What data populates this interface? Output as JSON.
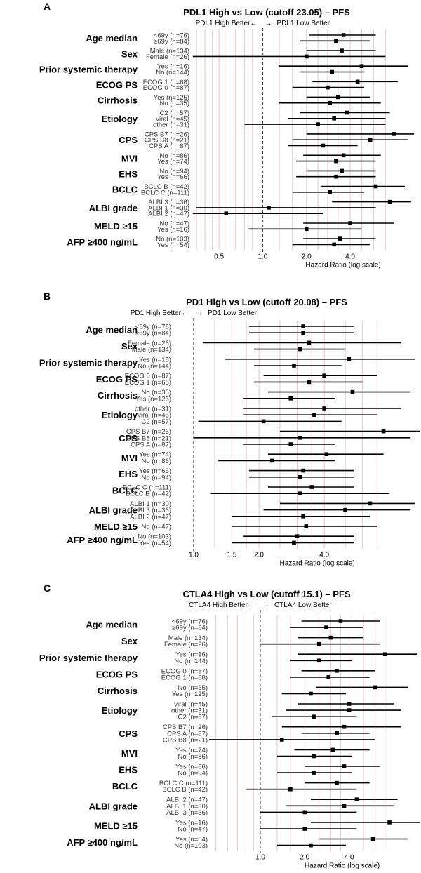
{
  "colors": {
    "grid": "#e4c9c9",
    "ref": "#444444",
    "marks": "#000000"
  },
  "chart_data": [
    {
      "type": "forest",
      "panel": "A",
      "title": "PDL1 High vs Low (cutoff 23.05) – PFS",
      "left_direction": "PDL1 High Better←",
      "arrow": "→",
      "right_direction": "PDL1 Low Better",
      "xlabel": "Hazard Ratio (log scale)",
      "x_scale": "log",
      "xlim": [
        0.32,
        11
      ],
      "ticks": [
        0.5,
        1.0,
        2.0,
        4.0
      ],
      "tick_labels": [
        "0.5",
        "1.0",
        "2.0",
        "4.0"
      ],
      "gridlines": [
        0.35,
        0.4,
        0.45,
        0.55,
        0.65,
        0.75,
        0.85,
        1.3,
        1.6,
        2.4,
        2.8,
        3.3,
        4.8,
        5.8,
        7.0
      ],
      "reference": 1.0,
      "groups": [
        {
          "variable": "Age median",
          "rows": [
            {
              "label": "<69y (n=76)",
              "hr": 3.6,
              "lo": 2.1,
              "hi": 6.0
            },
            {
              "label": "≥69y (n=84)",
              "hr": 3.2,
              "lo": 1.8,
              "hi": 5.5
            }
          ]
        },
        {
          "variable": "Sex",
          "rows": [
            {
              "label": "Male (n=134)",
              "hr": 3.5,
              "lo": 2.0,
              "hi": 6.0
            },
            {
              "label": "Female (n=26)",
              "hr": 2.0,
              "lo": 0.33,
              "hi": 7.0
            }
          ]
        },
        {
          "variable": "Prior systemic therapy",
          "rows": [
            {
              "label": "Yes (n=16)",
              "hr": 4.8,
              "lo": 1.3,
              "hi": 10.0
            },
            {
              "label": "No (n=144)",
              "hr": 3.0,
              "lo": 1.8,
              "hi": 5.0
            }
          ]
        },
        {
          "variable": "ECOG PS",
          "rows": [
            {
              "label": "ECOG 1 (n=68)",
              "hr": 4.5,
              "lo": 2.2,
              "hi": 8.5
            },
            {
              "label": "ECOG 0 (n=87)",
              "hr": 2.8,
              "lo": 1.6,
              "hi": 5.0
            }
          ]
        },
        {
          "variable": "Cirrhosis",
          "rows": [
            {
              "label": "Yes (n=125)",
              "hr": 3.3,
              "lo": 2.0,
              "hi": 5.5
            },
            {
              "label": "No (n=35)",
              "hr": 2.9,
              "lo": 1.3,
              "hi": 6.5
            }
          ]
        },
        {
          "variable": "Etiology",
          "rows": [
            {
              "label": "C2 (n=57)",
              "hr": 3.8,
              "lo": 1.8,
              "hi": 7.5
            },
            {
              "label": "viral (n=45)",
              "hr": 3.1,
              "lo": 1.5,
              "hi": 7.0
            },
            {
              "label": "other (n=31)",
              "hr": 2.4,
              "lo": 0.75,
              "hi": 7.0
            }
          ]
        },
        {
          "variable": "CPS",
          "rows": [
            {
              "label": "CPS B7 (n=26)",
              "hr": 8.0,
              "lo": 2.0,
              "hi": 11.0
            },
            {
              "label": "CPS B8 (n=21)",
              "hr": 5.5,
              "lo": 1.6,
              "hi": 10.0
            },
            {
              "label": "CPS A (n=87)",
              "hr": 2.6,
              "lo": 1.5,
              "hi": 4.5
            }
          ]
        },
        {
          "variable": "MVI",
          "rows": [
            {
              "label": "No (n=86)",
              "hr": 3.6,
              "lo": 1.9,
              "hi": 6.5
            },
            {
              "label": "Yes (n=74)",
              "hr": 3.2,
              "lo": 1.7,
              "hi": 6.0
            }
          ]
        },
        {
          "variable": "EHS",
          "rows": [
            {
              "label": "No (n=94)",
              "hr": 3.5,
              "lo": 2.0,
              "hi": 6.0
            },
            {
              "label": "Yes (n=66)",
              "hr": 3.2,
              "lo": 1.7,
              "hi": 6.0
            }
          ]
        },
        {
          "variable": "BCLC",
          "rows": [
            {
              "label": "BCLC B (n=42)",
              "hr": 6.0,
              "lo": 2.5,
              "hi": 9.5
            },
            {
              "label": "BCLC C (n=111)",
              "hr": 2.9,
              "lo": 1.6,
              "hi": 5.0
            }
          ]
        },
        {
          "variable": "ALBI grade",
          "rows": [
            {
              "label": "ALBI 3 (n=36)",
              "hr": 7.5,
              "lo": 3.0,
              "hi": 10.5
            },
            {
              "label": "ALBI 1 (n=30)",
              "hr": 1.1,
              "lo": 0.35,
              "hi": 6.0
            },
            {
              "label": "ALBI 2 (n=47)",
              "hr": 0.56,
              "lo": 0.33,
              "hi": 2.6
            }
          ]
        },
        {
          "variable": "MELD ≥15",
          "rows": [
            {
              "label": "No (n=47)",
              "hr": 4.0,
              "lo": 1.9,
              "hi": 8.0
            },
            {
              "label": "Yes (n=16)",
              "hr": 2.0,
              "lo": 0.8,
              "hi": 4.8
            }
          ]
        },
        {
          "variable": "AFP ≥400 ng/mL",
          "rows": [
            {
              "label": "No (n=103)",
              "hr": 3.4,
              "lo": 1.9,
              "hi": 6.0
            },
            {
              "label": "Yes (n=54)",
              "hr": 3.1,
              "lo": 1.6,
              "hi": 5.5
            }
          ]
        }
      ]
    },
    {
      "type": "forest",
      "panel": "B",
      "title": "PD1 High vs Low (cutoff 20.08) – PFS",
      "left_direction": "PD1 High Better←",
      "arrow": "→",
      "right_direction": "PD1 Low Better",
      "xlabel": "Hazard Ratio (log scale)",
      "x_scale": "log",
      "xlim": [
        0.8,
        11
      ],
      "ticks": [
        1.0,
        1.5,
        2.0,
        4.0
      ],
      "tick_labels": [
        "1.0",
        "1.5",
        "2.0",
        "4.0"
      ],
      "gridlines": [
        1.25,
        1.75,
        2.5,
        3.0,
        3.5,
        5.0,
        6.0,
        7.0
      ],
      "reference": 1.0,
      "groups": [
        {
          "variable": "Age median",
          "rows": [
            {
              "label": "<69y (n=76)",
              "hr": 3.2,
              "lo": 1.8,
              "hi": 5.5
            },
            {
              "label": "≥69y (n=84)",
              "hr": 3.2,
              "lo": 1.8,
              "hi": 5.5
            }
          ]
        },
        {
          "variable": "Sex",
          "rows": [
            {
              "label": "Female (n=26)",
              "hr": 3.4,
              "lo": 1.1,
              "hi": 9.0
            },
            {
              "label": "Male (n=134)",
              "hr": 3.1,
              "lo": 1.9,
              "hi": 5.0
            }
          ]
        },
        {
          "variable": "Prior systemic therapy",
          "rows": [
            {
              "label": "Yes (n=16)",
              "hr": 5.2,
              "lo": 1.4,
              "hi": 10.5
            },
            {
              "label": "No (n=144)",
              "hr": 2.9,
              "lo": 1.9,
              "hi": 4.8
            }
          ]
        },
        {
          "variable": "ECOG PS",
          "rows": [
            {
              "label": "ECOG 0 (n=87)",
              "hr": 4.0,
              "lo": 2.1,
              "hi": 7.0
            },
            {
              "label": "ECOG 1 (n=68)",
              "hr": 3.4,
              "lo": 1.9,
              "hi": 6.0
            }
          ]
        },
        {
          "variable": "Cirrhosis",
          "rows": [
            {
              "label": "No (n=35)",
              "hr": 5.4,
              "lo": 2.2,
              "hi": 10.0
            },
            {
              "label": "Yes (n=125)",
              "hr": 2.8,
              "lo": 1.7,
              "hi": 4.5
            }
          ]
        },
        {
          "variable": "Etiology",
          "rows": [
            {
              "label": "other (n=31)",
              "hr": 4.0,
              "lo": 1.7,
              "hi": 9.0
            },
            {
              "label": "viral (n=45)",
              "hr": 3.6,
              "lo": 1.7,
              "hi": 7.0
            },
            {
              "label": "C2 (n=57)",
              "hr": 2.1,
              "lo": 1.05,
              "hi": 4.8
            }
          ]
        },
        {
          "variable": "CPS",
          "rows": [
            {
              "label": "CPS B7 (n=26)",
              "hr": 7.5,
              "lo": 2.5,
              "hi": 11.0
            },
            {
              "label": "CPS B8 (n=21)",
              "hr": 3.1,
              "lo": 1.0,
              "hi": 10.0
            },
            {
              "label": "CPS A (n=87)",
              "hr": 2.8,
              "lo": 1.7,
              "hi": 4.5
            }
          ]
        },
        {
          "variable": "MVI",
          "rows": [
            {
              "label": "Yes (n=74)",
              "hr": 4.1,
              "lo": 2.2,
              "hi": 7.5
            },
            {
              "label": "No (n=86)",
              "hr": 2.3,
              "lo": 1.3,
              "hi": 4.5
            }
          ]
        },
        {
          "variable": "EHS",
          "rows": [
            {
              "label": "Yes (n=66)",
              "hr": 3.2,
              "lo": 1.8,
              "hi": 5.5
            },
            {
              "label": "No (n=94)",
              "hr": 3.1,
              "lo": 1.8,
              "hi": 5.5
            }
          ]
        },
        {
          "variable": "BCLC",
          "rows": [
            {
              "label": "BCLC C (n=111)",
              "hr": 3.5,
              "lo": 2.2,
              "hi": 5.5
            },
            {
              "label": "BCLC B (n=42)",
              "hr": 3.1,
              "lo": 1.2,
              "hi": 8.0
            }
          ]
        },
        {
          "variable": "ALBI grade",
          "rows": [
            {
              "label": "ALBI 1 (n=30)",
              "hr": 6.5,
              "lo": 2.5,
              "hi": 10.5
            },
            {
              "label": "ALBI 3 (n=36)",
              "hr": 5.0,
              "lo": 2.1,
              "hi": 10.0
            },
            {
              "label": "ALBI 2 (n=47)",
              "hr": 3.2,
              "lo": 1.5,
              "hi": 6.5
            }
          ]
        },
        {
          "variable": "MELD ≥15",
          "rows": [
            {
              "label": "No (n=47)",
              "hr": 3.3,
              "lo": 1.5,
              "hi": 7.0
            }
          ]
        },
        {
          "variable": "AFP ≥400 ng/mL",
          "rows": [
            {
              "label": "No (n=103)",
              "hr": 3.0,
              "lo": 1.7,
              "hi": 5.5
            },
            {
              "label": "Yes (n=54)",
              "hr": 2.9,
              "lo": 1.5,
              "hi": 5.5
            }
          ]
        }
      ]
    },
    {
      "type": "forest",
      "panel": "C",
      "title": "CTLA4 High vs Low (cutoff 15.1) – PFS",
      "left_direction": "CTLA4 High Better←",
      "arrow": "→",
      "right_direction": "CTLA4 Low Better",
      "xlabel": "Hazard Ratio (log scale)",
      "x_scale": "log",
      "xlim": [
        0.45,
        12
      ],
      "ticks": [
        1.0,
        2.0,
        4.0
      ],
      "tick_labels": [
        "1.0",
        "2.0",
        "4.0"
      ],
      "gridlines": [
        0.5,
        0.6,
        0.7,
        0.8,
        0.9,
        1.3,
        1.6,
        2.5,
        3.0,
        3.5,
        5.0,
        6.0,
        7.0
      ],
      "reference": 1.0,
      "groups": [
        {
          "variable": "Age median",
          "rows": [
            {
              "label": "<69y (n=76)",
              "hr": 3.5,
              "lo": 1.9,
              "hi": 6.5
            },
            {
              "label": "≥69y (n=84)",
              "hr": 2.8,
              "lo": 1.6,
              "hi": 5.0
            }
          ]
        },
        {
          "variable": "Sex",
          "rows": [
            {
              "label": "Male (n=134)",
              "hr": 3.0,
              "lo": 1.8,
              "hi": 5.0
            },
            {
              "label": "Female (n=26)",
              "hr": 2.5,
              "lo": 1.0,
              "hi": 6.5
            }
          ]
        },
        {
          "variable": "Prior systemic therapy",
          "rows": [
            {
              "label": "Yes (n=16)",
              "hr": 7.0,
              "lo": 1.8,
              "hi": 11.5
            },
            {
              "label": "No (n=144)",
              "hr": 2.5,
              "lo": 1.6,
              "hi": 4.2
            }
          ]
        },
        {
          "variable": "ECOG PS",
          "rows": [
            {
              "label": "ECOG 0 (n=87)",
              "hr": 3.3,
              "lo": 1.9,
              "hi": 6.0
            },
            {
              "label": "ECOG 1 (n=68)",
              "hr": 2.9,
              "lo": 1.6,
              "hi": 5.5
            }
          ]
        },
        {
          "variable": "Cirrhosis",
          "rows": [
            {
              "label": "No (n=35)",
              "hr": 6.0,
              "lo": 2.4,
              "hi": 10.0
            },
            {
              "label": "Yes (n=125)",
              "hr": 2.2,
              "lo": 1.4,
              "hi": 3.8
            }
          ]
        },
        {
          "variable": "Etiology",
          "rows": [
            {
              "label": "viral (n=45)",
              "hr": 4.0,
              "lo": 1.8,
              "hi": 8.0
            },
            {
              "label": "other (n=31)",
              "hr": 4.0,
              "lo": 1.5,
              "hi": 9.0
            },
            {
              "label": "C2 (n=57)",
              "hr": 2.3,
              "lo": 1.2,
              "hi": 4.5
            }
          ]
        },
        {
          "variable": "CPS",
          "rows": [
            {
              "label": "CPS B7 (n=26)",
              "hr": 3.7,
              "lo": 1.4,
              "hi": 9.0
            },
            {
              "label": "CPS A (n=87)",
              "hr": 3.3,
              "lo": 1.9,
              "hi": 5.5
            },
            {
              "label": "CPS B8 (n=21)",
              "hr": 1.4,
              "lo": 0.45,
              "hi": 6.0
            }
          ]
        },
        {
          "variable": "MVI",
          "rows": [
            {
              "label": "Yes (n=74)",
              "hr": 3.1,
              "lo": 1.7,
              "hi": 5.5
            },
            {
              "label": "No (n=86)",
              "hr": 2.3,
              "lo": 1.3,
              "hi": 4.2
            }
          ]
        },
        {
          "variable": "EHS",
          "rows": [
            {
              "label": "Yes (n=66)",
              "hr": 3.7,
              "lo": 2.0,
              "hi": 6.5
            },
            {
              "label": "No (n=94)",
              "hr": 2.3,
              "lo": 1.3,
              "hi": 4.2
            }
          ]
        },
        {
          "variable": "BCLC",
          "rows": [
            {
              "label": "BCLC C (n=111)",
              "hr": 3.3,
              "lo": 2.0,
              "hi": 5.5
            },
            {
              "label": "BCLC B (n=42)",
              "hr": 1.6,
              "lo": 0.8,
              "hi": 4.5
            }
          ]
        },
        {
          "variable": "ALBI grade",
          "rows": [
            {
              "label": "ALBI 2 (n=47)",
              "hr": 4.5,
              "lo": 2.2,
              "hi": 8.5
            },
            {
              "label": "ALBI 1 (n=30)",
              "hr": 3.7,
              "lo": 1.5,
              "hi": 8.0
            },
            {
              "label": "ALBI 3 (n=36)",
              "hr": 2.0,
              "lo": 1.0,
              "hi": 4.5
            }
          ]
        },
        {
          "variable": "MELD ≥15",
          "rows": [
            {
              "label": "Yes (n=16)",
              "hr": 7.5,
              "lo": 2.2,
              "hi": 12.0
            },
            {
              "label": "No (n=47)",
              "hr": 2.0,
              "lo": 1.0,
              "hi": 4.5
            }
          ]
        },
        {
          "variable": "AFP ≥400 ng/mL",
          "rows": [
            {
              "label": "Yes (n=54)",
              "hr": 5.8,
              "lo": 2.5,
              "hi": 10.0
            },
            {
              "label": "No (n=103)",
              "hr": 2.2,
              "lo": 1.3,
              "hi": 3.8
            }
          ]
        }
      ]
    }
  ]
}
